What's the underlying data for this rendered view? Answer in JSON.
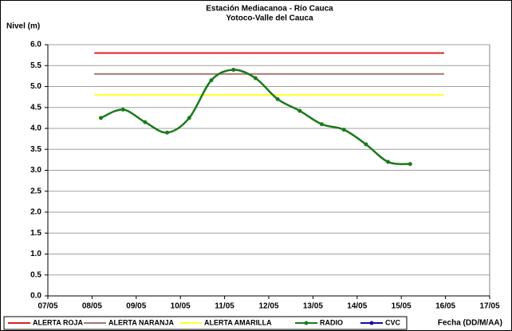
{
  "chart_data": {
    "type": "line",
    "title": "Estación Mediacanoa - Río Cauca",
    "subtitle": "Yotoco-Valle del Cauca",
    "y_label": "Nivel (m)",
    "x_label": "Fecha (DD/M/AA)",
    "xlim": [
      7,
      17
    ],
    "xticks": [
      {
        "value": 7,
        "label": "07/05"
      },
      {
        "value": 8,
        "label": "08/05"
      },
      {
        "value": 9,
        "label": "09/05"
      },
      {
        "value": 10,
        "label": "10/05"
      },
      {
        "value": 11,
        "label": "11/05"
      },
      {
        "value": 12,
        "label": "12/05"
      },
      {
        "value": 13,
        "label": "13/05"
      },
      {
        "value": 14,
        "label": "14/05"
      },
      {
        "value": 15,
        "label": "15/05"
      },
      {
        "value": 16,
        "label": "16/05"
      },
      {
        "value": 17,
        "label": "17/05"
      }
    ],
    "ylim": [
      0,
      6
    ],
    "yticks": [
      {
        "value": 0,
        "label": "0.0"
      },
      0.5,
      {
        "value": 1,
        "label": "1.0"
      },
      1.5,
      {
        "value": 2,
        "label": "2.0"
      },
      2.5,
      {
        "value": 3,
        "label": "3.0"
      },
      3.5,
      {
        "value": 4,
        "label": "4.0"
      },
      4.5,
      {
        "value": 5,
        "label": "5.0"
      },
      5.5,
      {
        "value": 6,
        "label": "6.0"
      }
    ],
    "grid": true,
    "legend": "bottom",
    "series": [
      {
        "name": "ALERTA ROJA",
        "color": "#e02020",
        "x": [
          8.05,
          15.97
        ],
        "values": [
          5.8,
          5.8
        ]
      },
      {
        "name": "ALERTA NARANJA",
        "color": "#a07870",
        "x": [
          8.05,
          15.97
        ],
        "values": [
          5.3,
          5.3
        ]
      },
      {
        "name": "ALERTA AMARILLA",
        "color": "#ffff33",
        "x": [
          8.05,
          15.97
        ],
        "values": [
          4.8,
          4.8
        ]
      },
      {
        "name": "RADIO",
        "color": "#1a7a1a",
        "marker": true,
        "smooth": true,
        "x": [
          8.2,
          8.7,
          9.2,
          9.7,
          10.2,
          10.7,
          11.2,
          11.7,
          12.2,
          12.7,
          13.2,
          13.7,
          14.2,
          14.7,
          15.2
        ],
        "values": [
          4.25,
          4.45,
          4.15,
          3.9,
          4.25,
          5.15,
          5.4,
          5.2,
          4.7,
          4.42,
          4.1,
          3.97,
          3.62,
          3.2,
          3.15
        ]
      },
      {
        "name": "CVC",
        "color": "#1010a0",
        "marker": true,
        "x": [],
        "values": []
      }
    ]
  }
}
